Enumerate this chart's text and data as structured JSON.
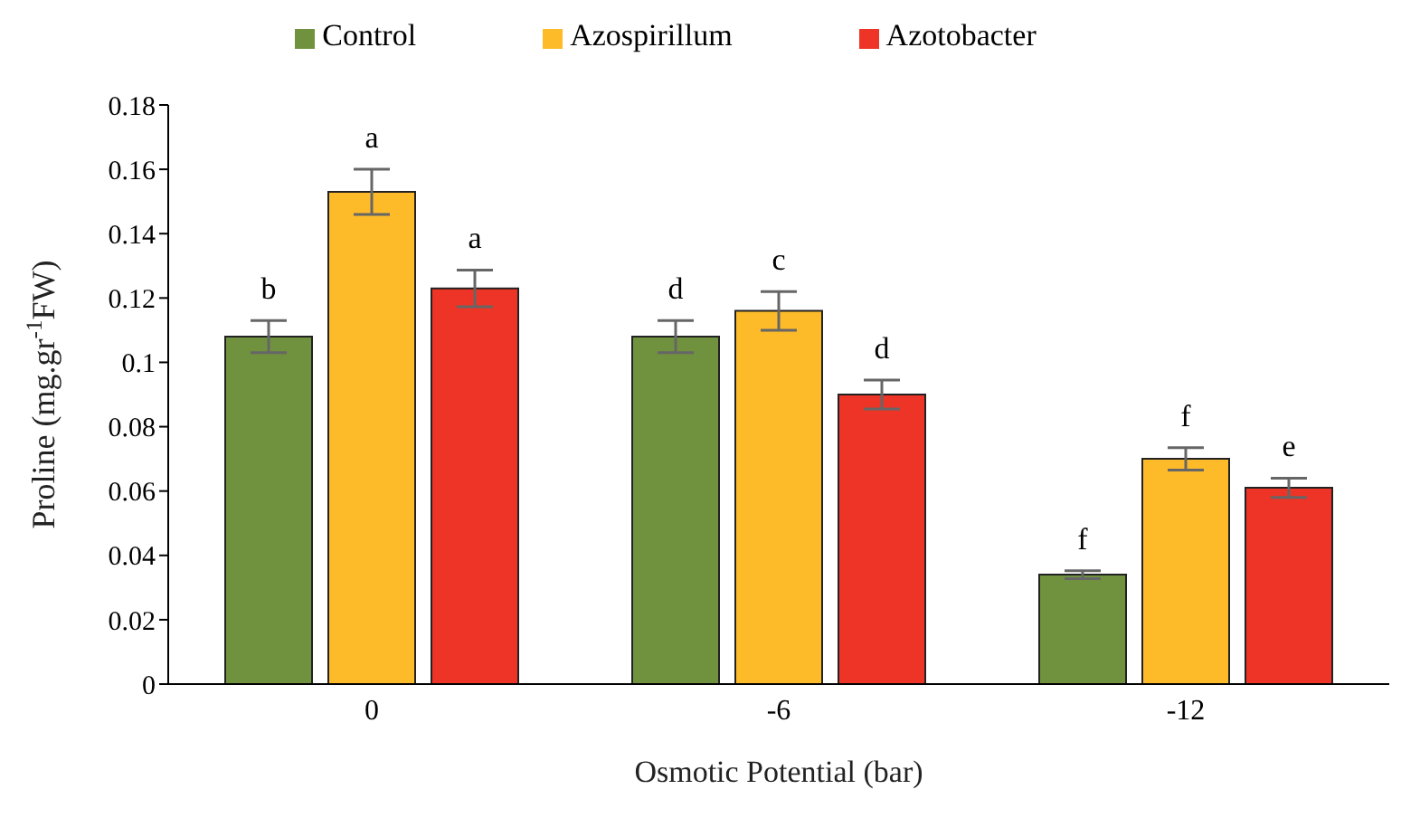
{
  "chart_data": {
    "type": "bar",
    "xlabel": "Osmotic Potential (bar)",
    "ylabel": "Proline (mg.gr$^{-1}$FW)",
    "categories": [
      "0",
      "-6",
      "-12"
    ],
    "series": [
      {
        "name": "Control",
        "color": "#70923f",
        "values": [
          0.108,
          0.108,
          0.034
        ],
        "errors": [
          0.005,
          0.005,
          0.0012
        ]
      },
      {
        "name": "Azospirillum",
        "color": "#fdbb2a",
        "values": [
          0.153,
          0.116,
          0.07
        ],
        "errors": [
          0.007,
          0.006,
          0.0035
        ]
      },
      {
        "name": "Azotobacter",
        "color": "#ee3426",
        "values": [
          0.123,
          0.09,
          0.061
        ],
        "errors": [
          0.0057,
          0.0045,
          0.003
        ]
      }
    ],
    "ylim": [
      0,
      0.18
    ],
    "yticks": [
      0,
      0.02,
      0.04,
      0.06,
      0.08,
      0.1,
      0.12,
      0.14,
      0.16,
      0.18
    ],
    "grid": false,
    "legend": "top",
    "annotations": [
      "b",
      "a",
      "a",
      "d",
      "c",
      "d",
      "f",
      "f",
      "e"
    ]
  }
}
